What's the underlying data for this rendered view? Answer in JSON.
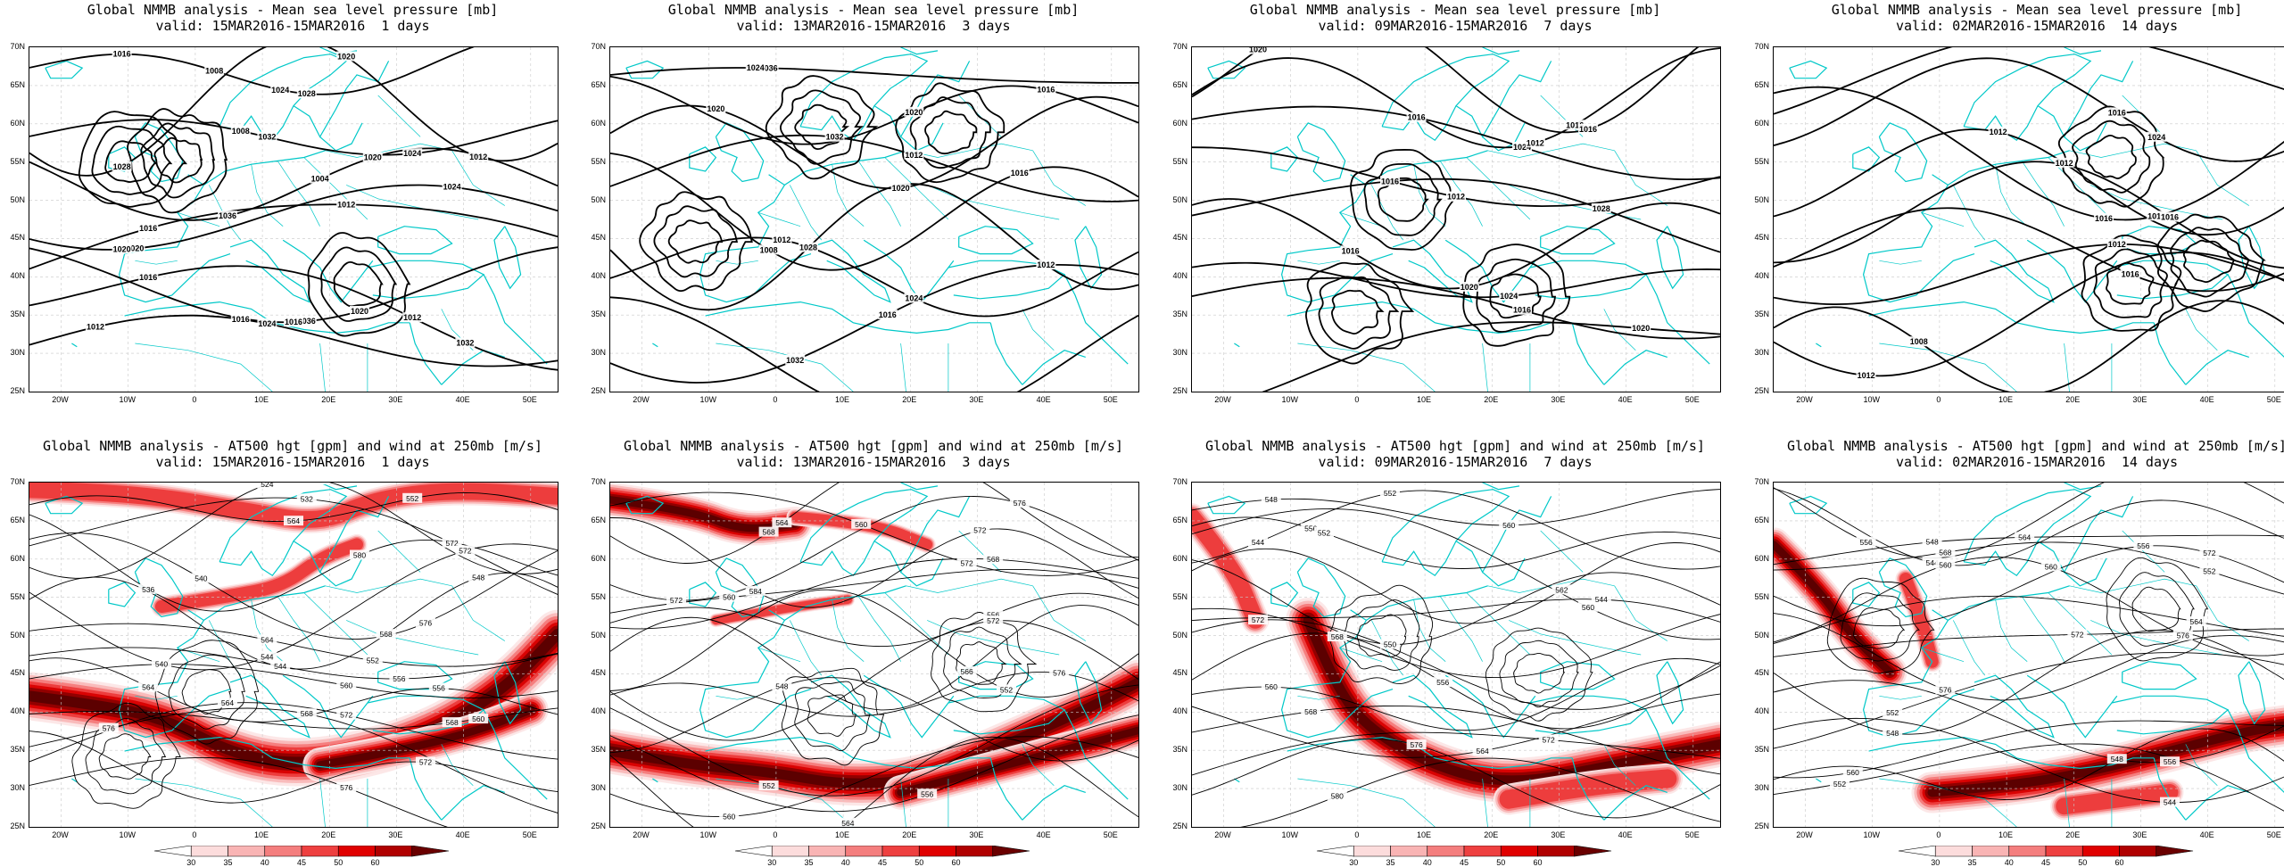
{
  "panels": [
    {
      "title1": "Global NMMB analysis - Mean sea level pressure [mb]",
      "title2": "valid: 15MAR2016-15MAR2016  1 days",
      "type": "mslp",
      "contour_labels": [
        "1024",
        "1028",
        "1032",
        "1036",
        "1024",
        "1028",
        "1036",
        "1032",
        "1024",
        "1028",
        "1020",
        "1024",
        "1020",
        "1020",
        "1012",
        "1016",
        "1016",
        "1016",
        "1008",
        "1012",
        "1008",
        "1004",
        "1020",
        "1016",
        "1020",
        "1012",
        "1012",
        "1016",
        "1020"
      ]
    },
    {
      "title1": "Global NMMB analysis - Mean sea level pressure [mb]",
      "title2": "valid: 13MAR2016-15MAR2016  3 days",
      "type": "mslp",
      "contour_labels": [
        "1036",
        "1016",
        "1020",
        "1032",
        "1016",
        "1028",
        "1024",
        "1032",
        "1028",
        "1024",
        "1020",
        "1020",
        "1012",
        "1008",
        "1012",
        "1012",
        "1016",
        "1012"
      ]
    },
    {
      "title1": "Global NMMB analysis - Mean sea level pressure [mb]",
      "title2": "valid: 09MAR2016-15MAR2016  7 days",
      "type": "mslp",
      "contour_labels": [
        "1020",
        "1016",
        "1024",
        "1024",
        "1028",
        "1020",
        "1024",
        "1016",
        "1020",
        "1016",
        "1012",
        "1016",
        "1012",
        "1016",
        "1016"
      ]
    },
    {
      "title1": "Global NMMB analysis - Mean sea level pressure [mb]",
      "title2": "valid: 02MAR2016-15MAR2016  14 days",
      "type": "mslp",
      "contour_labels": [
        "1020",
        "1016",
        "1012",
        "1012",
        "1016",
        "1016",
        "1012",
        "1012",
        "1008",
        "1016",
        "1024",
        "1016",
        "1012"
      ]
    },
    {
      "title1": "Global NMMB analysis - AT500 hgt [gpm] and wind at 250mb [m/s]",
      "title2": "valid: 15MAR2016-15MAR2016  1 days",
      "type": "z500",
      "contour_labels": [
        "564",
        "568",
        "572",
        "580",
        "576",
        "572",
        "568",
        "564",
        "544",
        "540",
        "556",
        "560",
        "564",
        "568",
        "572",
        "576",
        "552",
        "524",
        "532",
        "536",
        "540",
        "544",
        "548",
        "552",
        "556",
        "560",
        "564",
        "568",
        "572",
        "576"
      ]
    },
    {
      "title1": "Global NMMB analysis - AT500 hgt [gpm] and wind at 250mb [m/s]",
      "title2": "valid: 13MAR2016-15MAR2016  3 days",
      "type": "z500",
      "contour_labels": [
        "564",
        "560",
        "572",
        "572",
        "568",
        "560",
        "556",
        "552",
        "566",
        "572",
        "576",
        "548",
        "552",
        "556",
        "560",
        "564",
        "568",
        "572",
        "576",
        "584"
      ]
    },
    {
      "title1": "Global NMMB analysis - AT500 hgt [gpm] and wind at 250mb [m/s]",
      "title2": "valid: 09MAR2016-15MAR2016  7 days",
      "type": "z500",
      "contour_labels": [
        "548",
        "552",
        "556",
        "560",
        "562",
        "550",
        "544",
        "568",
        "572",
        "556",
        "560",
        "564",
        "568",
        "572",
        "576",
        "580",
        "560",
        "544",
        "552"
      ]
    },
    {
      "title1": "Global NMMB analysis - AT500 hgt [gpm] and wind at 250mb [m/s]",
      "title2": "valid: 02MAR2016-15MAR2016  14 days",
      "type": "z500",
      "contour_labels": [
        "540",
        "544",
        "548",
        "552",
        "556",
        "560",
        "564",
        "572",
        "576",
        "548",
        "552",
        "556",
        "560",
        "544",
        "548",
        "552",
        "556",
        "560",
        "564",
        "568",
        "572",
        "576"
      ]
    }
  ],
  "axes": {
    "y_ticks": [
      "70N",
      "65N",
      "60N",
      "55N",
      "50N",
      "45N",
      "40N",
      "35N",
      "30N",
      "25N"
    ],
    "x_ticks": [
      "20W",
      "10W",
      "0",
      "10E",
      "20E",
      "30E",
      "40E",
      "50E"
    ]
  },
  "colorbar": {
    "ticks": [
      "30",
      "35",
      "40",
      "45",
      "50",
      "60"
    ],
    "colors": [
      "#ffffff",
      "#fcdcdc",
      "#f9b4b4",
      "#f47e7e",
      "#ee4040",
      "#e00000",
      "#b00000",
      "#6a0000"
    ]
  },
  "colors": {
    "coast": "#00c8c8",
    "contour": "#000000",
    "grid": "#c8c8c8"
  }
}
